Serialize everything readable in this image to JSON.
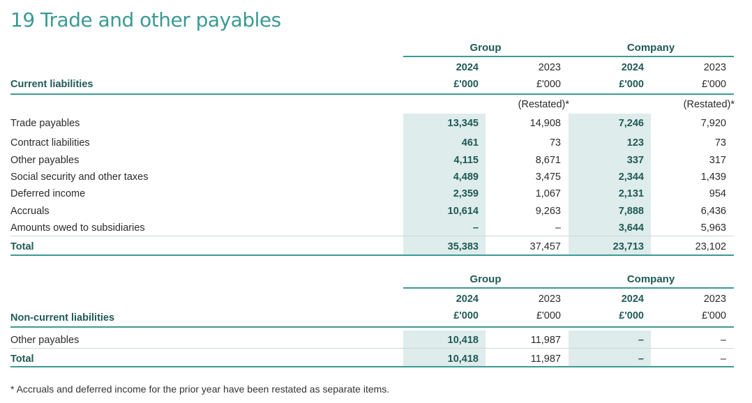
{
  "title": "19 Trade and other payables",
  "headers": {
    "group": "Group",
    "company": "Company",
    "year_current": "2024",
    "year_prior": "2023",
    "unit": "£'000",
    "restated": "(Restated)*"
  },
  "current": {
    "section_label": "Current liabilities",
    "rows": [
      {
        "label": "Trade payables",
        "g24": "13,345",
        "g23": "14,908",
        "c24": "7,246",
        "c23": "7,920"
      },
      {
        "label": "Contract liabilities",
        "g24": "461",
        "g23": "73",
        "c24": "123",
        "c23": "73"
      },
      {
        "label": "Other payables",
        "g24": "4,115",
        "g23": "8,671",
        "c24": "337",
        "c23": "317"
      },
      {
        "label": "Social security and other taxes",
        "g24": "4,489",
        "g23": "3,475",
        "c24": "2,344",
        "c23": "1,439"
      },
      {
        "label": "Deferred income",
        "g24": "2,359",
        "g23": "1,067",
        "c24": "2,131",
        "c23": "954"
      },
      {
        "label": "Accruals",
        "g24": "10,614",
        "g23": "9,263",
        "c24": "7,888",
        "c23": "6,436"
      },
      {
        "label": "Amounts owed to subsidiaries",
        "g24": "–",
        "g23": "–",
        "c24": "3,644",
        "c23": "5,963"
      }
    ],
    "total": {
      "label": "Total",
      "g24": "35,383",
      "g23": "37,457",
      "c24": "23,713",
      "c23": "23,102"
    }
  },
  "noncurrent": {
    "section_label": "Non-current liabilities",
    "rows": [
      {
        "label": "Other payables",
        "g24": "10,418",
        "g23": "11,987",
        "c24": "–",
        "c23": "–"
      }
    ],
    "total": {
      "label": "Total",
      "g24": "10,418",
      "g23": "11,987",
      "c24": "–",
      "c23": "–"
    }
  },
  "footnote": "* Accruals and deferred income for the prior year have been restated as separate items."
}
